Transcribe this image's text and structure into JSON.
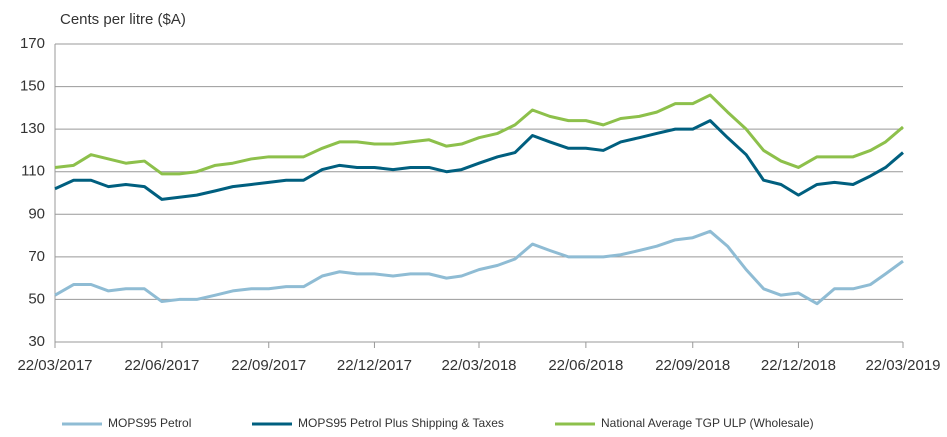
{
  "chart_data": {
    "type": "line",
    "y_label": "Cents per litre ($A)",
    "x": [
      "22/03/2017",
      "07/04/2017",
      "22/04/2017",
      "07/05/2017",
      "22/05/2017",
      "07/06/2017",
      "22/06/2017",
      "07/07/2017",
      "22/07/2017",
      "07/08/2017",
      "22/08/2017",
      "07/09/2017",
      "22/09/2017",
      "07/10/2017",
      "22/10/2017",
      "07/11/2017",
      "22/11/2017",
      "07/12/2017",
      "22/12/2017",
      "07/01/2018",
      "22/01/2018",
      "07/02/2018",
      "22/02/2018",
      "07/03/2018",
      "22/03/2018",
      "07/04/2018",
      "22/04/2018",
      "07/05/2018",
      "22/05/2018",
      "07/06/2018",
      "22/06/2018",
      "07/07/2018",
      "22/07/2018",
      "07/08/2018",
      "22/08/2018",
      "07/09/2018",
      "22/09/2018",
      "07/10/2018",
      "22/10/2018",
      "07/11/2018",
      "22/11/2018",
      "07/12/2018",
      "22/12/2018",
      "07/01/2019",
      "22/01/2019",
      "07/02/2019",
      "22/02/2019",
      "07/03/2019",
      "22/03/2019"
    ],
    "series": [
      {
        "name": "MOPS95 Petrol",
        "color": "#8fbcd4",
        "values": [
          52,
          57,
          57,
          54,
          55,
          55,
          49,
          50,
          50,
          52,
          54,
          55,
          55,
          56,
          56,
          61,
          63,
          62,
          62,
          61,
          62,
          62,
          60,
          61,
          64,
          66,
          69,
          76,
          73,
          70,
          70,
          70,
          71,
          73,
          75,
          78,
          79,
          82,
          75,
          64,
          55,
          52,
          53,
          48,
          55,
          55,
          57,
          62,
          68
        ]
      },
      {
        "name": "MOPS95 Petrol Plus Shipping & Taxes",
        "color": "#005f7f",
        "values": [
          102,
          106,
          106,
          103,
          104,
          103,
          97,
          98,
          99,
          101,
          103,
          104,
          105,
          106,
          106,
          111,
          113,
          112,
          112,
          111,
          112,
          112,
          110,
          111,
          114,
          117,
          119,
          127,
          124,
          121,
          121,
          120,
          124,
          126,
          128,
          130,
          130,
          134,
          126,
          118,
          106,
          104,
          99,
          104,
          105,
          104,
          108,
          112,
          119
        ]
      },
      {
        "name": "National Average TGP ULP (Wholesale)",
        "color": "#8dc04b",
        "values": [
          112,
          113,
          118,
          116,
          114,
          115,
          109,
          109,
          110,
          113,
          114,
          116,
          117,
          117,
          117,
          121,
          124,
          124,
          123,
          123,
          124,
          125,
          122,
          123,
          126,
          128,
          132,
          139,
          136,
          134,
          134,
          132,
          135,
          136,
          138,
          142,
          142,
          146,
          138,
          130,
          120,
          115,
          112,
          117,
          117,
          117,
          120,
          124,
          131
        ]
      }
    ],
    "xlim": [
      "22/03/2017",
      "22/03/2019"
    ],
    "xticks": [
      "22/03/2017",
      "22/06/2017",
      "22/09/2017",
      "22/12/2017",
      "22/03/2018",
      "22/06/2018",
      "22/09/2018",
      "22/12/2018",
      "22/03/2019"
    ],
    "ylim": [
      30,
      170
    ],
    "yticks": [
      30,
      50,
      70,
      90,
      110,
      130,
      150,
      170
    ],
    "grid": true,
    "legend": "bottom"
  }
}
